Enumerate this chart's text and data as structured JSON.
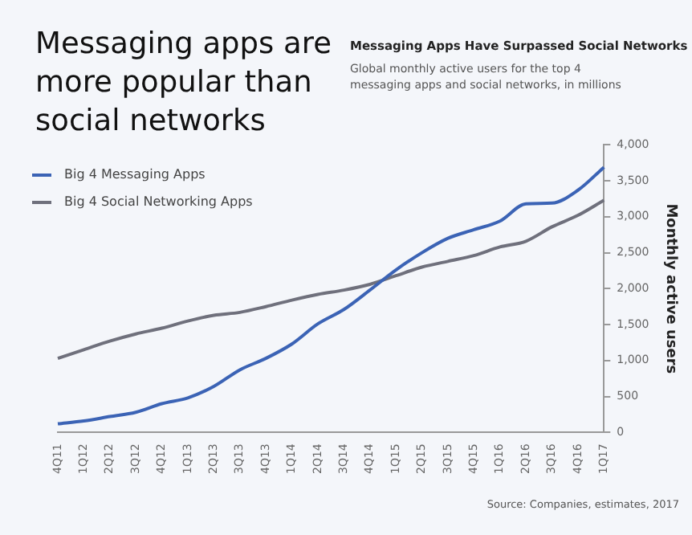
{
  "chart_data": {
    "type": "line",
    "title": "Messaging apps are more popular than social networks",
    "subtitle": "Messaging Apps Have Surpassed Social Networks",
    "ylabel": "Monthly active users",
    "annotations": [
      "Global monthly active users for the top 4 messaging apps and social networks, in millions",
      "Source: Companies, estimates, 2017"
    ],
    "categories": [
      "4Q11",
      "1Q12",
      "2Q12",
      "3Q12",
      "4Q12",
      "1Q13",
      "2Q13",
      "3Q13",
      "4Q13",
      "1Q14",
      "2Q14",
      "3Q14",
      "4Q14",
      "1Q15",
      "2Q15",
      "3Q15",
      "4Q15",
      "1Q16",
      "2Q16",
      "3Q16",
      "4Q16",
      "1Q17"
    ],
    "series": [
      {
        "name": "Big 4 Messaging Apps",
        "color": "#3b63b5",
        "values": [
          120,
          160,
          220,
          280,
          400,
          480,
          640,
          870,
          1030,
          1230,
          1510,
          1710,
          1980,
          2260,
          2500,
          2700,
          2820,
          2940,
          3180,
          3190,
          3370,
          3690
        ]
      },
      {
        "name": "Big 4 Social Networking Apps",
        "color": "#6f707c",
        "values": [
          1030,
          1150,
          1270,
          1370,
          1450,
          1550,
          1630,
          1670,
          1750,
          1840,
          1920,
          1980,
          2060,
          2180,
          2300,
          2380,
          2460,
          2580,
          2660,
          2860,
          3020,
          3230
        ]
      }
    ],
    "ylim": [
      0,
      4000
    ],
    "yticks": [
      {
        "value": 0,
        "label": "0"
      },
      {
        "value": 500,
        "label": "500"
      },
      {
        "value": 1000,
        "label": "1,000"
      },
      {
        "value": 1500,
        "label": "1,500"
      },
      {
        "value": 2000,
        "label": "2,000"
      },
      {
        "value": 2500,
        "label": "2,500"
      },
      {
        "value": 3000,
        "label": "3,000"
      },
      {
        "value": 3500,
        "label": "3,500"
      },
      {
        "value": 4000,
        "label": "4,000"
      }
    ],
    "grid": false,
    "legend": "top left",
    "marker": "none",
    "line_style": "solid"
  }
}
